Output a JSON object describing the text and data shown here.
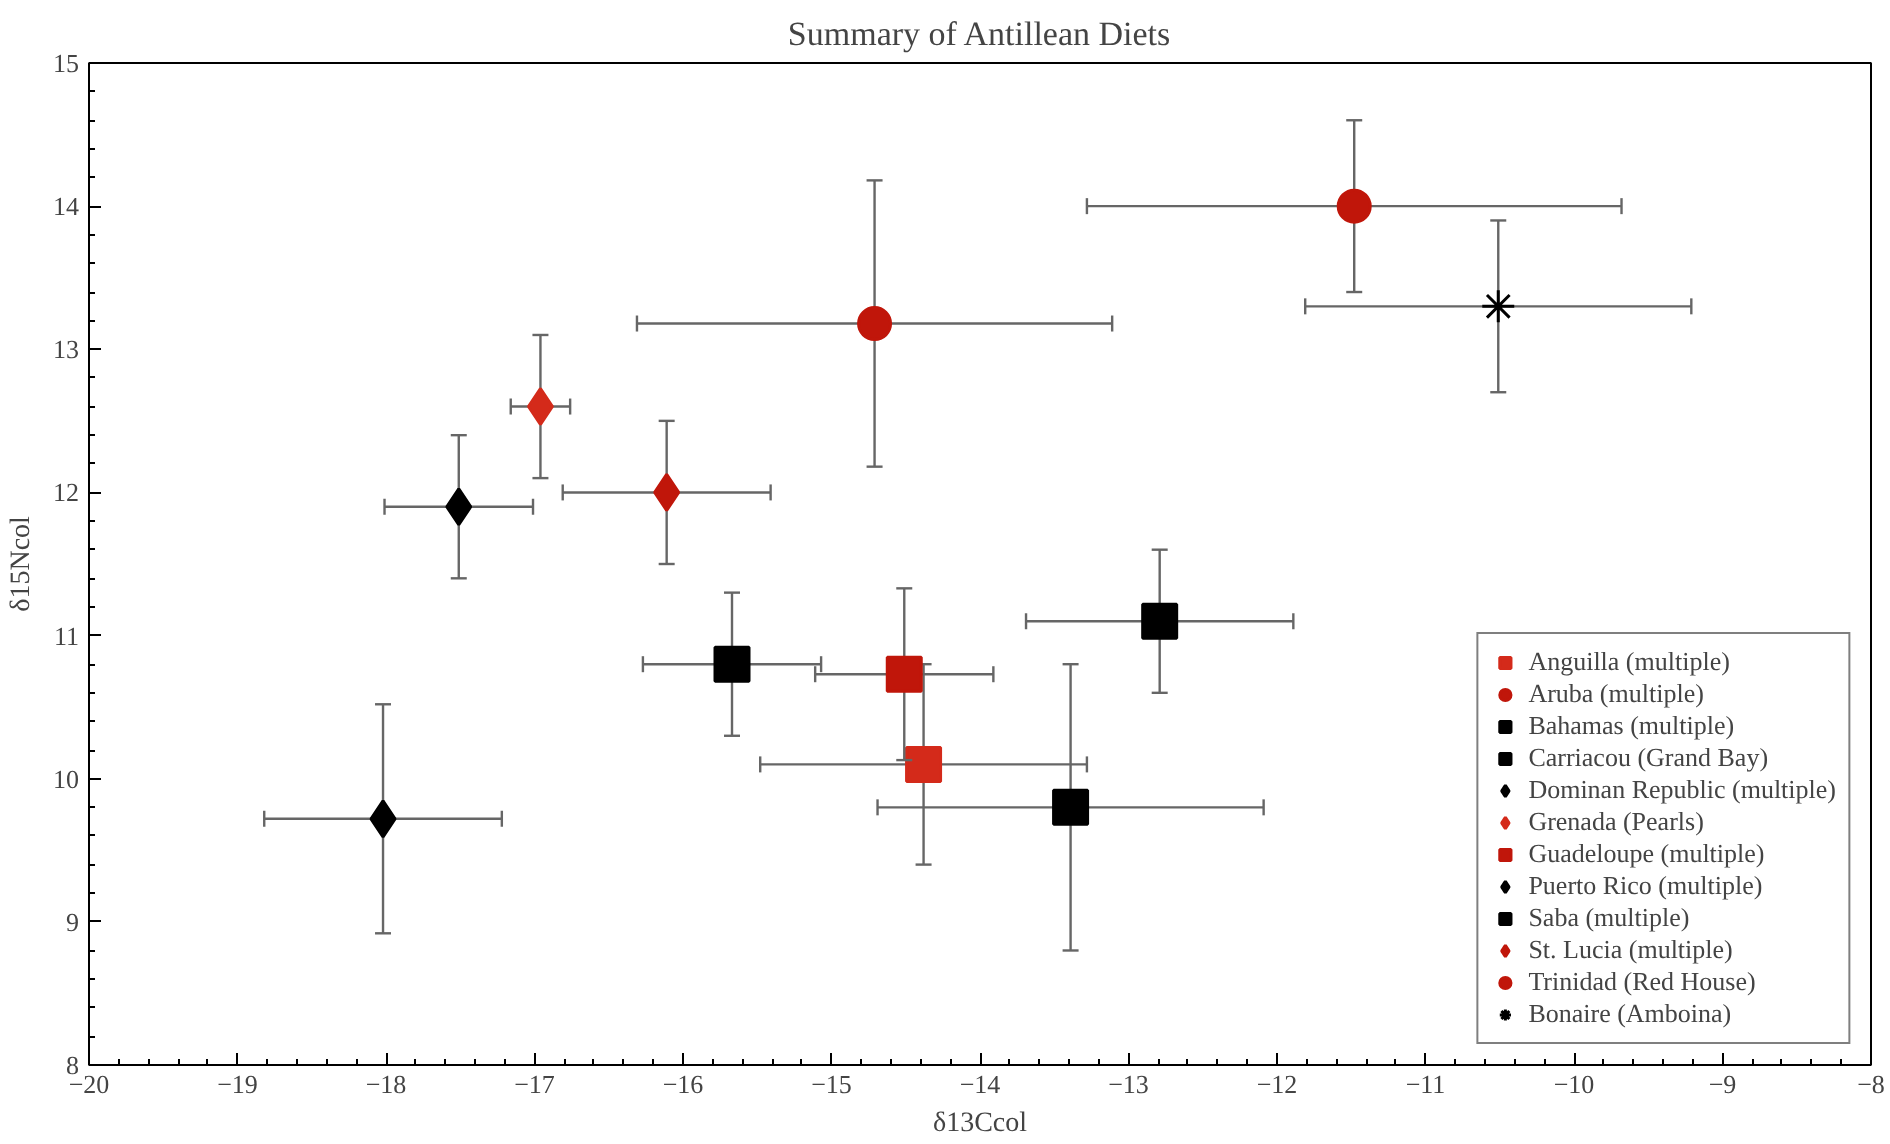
{
  "chart_data": {
    "type": "scatter",
    "title": "Summary of Antillean Diets",
    "xlabel": "δ13Ccol",
    "ylabel": "δ15Ncol",
    "xlim": [
      -20,
      -8
    ],
    "xticks": [
      -20,
      -19,
      -18,
      -17,
      -16,
      -15,
      -14,
      -13,
      -12,
      -11,
      -10,
      -9,
      -8
    ],
    "ylim": [
      8,
      15
    ],
    "yticks": [
      8,
      9,
      10,
      11,
      12,
      13,
      14,
      15
    ],
    "grid": false,
    "legend": "bottom right",
    "series": [
      {
        "name": "Anguilla (multiple)",
        "color": "#d42a1a",
        "marker": "square",
        "x": [
          -14.38
        ],
        "values": [
          10.1
        ],
        "xerrors": [
          1.1
        ],
        "errors": [
          0.7
        ]
      },
      {
        "name": "Aruba (multiple)",
        "color": "#c0160a",
        "marker": "circle",
        "x": [
          -11.48
        ],
        "values": [
          14.0
        ],
        "xerrors": [
          1.8
        ],
        "errors": [
          0.6
        ]
      },
      {
        "name": "Bahamas (multiple)",
        "color": "#000000",
        "marker": "square",
        "x": [
          -15.67
        ],
        "values": [
          10.8
        ],
        "xerrors": [
          0.6
        ],
        "errors": [
          0.5
        ]
      },
      {
        "name": "Carriacou (Grand Bay)",
        "color": "#000000",
        "marker": "square",
        "x": [
          -12.79
        ],
        "values": [
          11.1
        ],
        "xerrors": [
          0.9
        ],
        "errors": [
          0.5
        ]
      },
      {
        "name": "Dominan Republic (multiple)",
        "color": "#000000",
        "marker": "diamond",
        "x": [
          -17.51
        ],
        "values": [
          11.9
        ],
        "xerrors": [
          0.5
        ],
        "errors": [
          0.5
        ]
      },
      {
        "name": "Grenada (Pearls)",
        "color": "#d42a1a",
        "marker": "diamond",
        "x": [
          -16.96
        ],
        "values": [
          12.6
        ],
        "xerrors": [
          0.2
        ],
        "errors": [
          0.5
        ]
      },
      {
        "name": "Guadeloupe (multiple)",
        "color": "#c0160a",
        "marker": "square",
        "x": [
          -14.51
        ],
        "values": [
          10.73
        ],
        "xerrors": [
          0.6
        ],
        "errors": [
          0.6
        ]
      },
      {
        "name": "Puerto Rico (multiple)",
        "color": "#000000",
        "marker": "diamond",
        "x": [
          -18.02
        ],
        "values": [
          9.72
        ],
        "xerrors": [
          0.8
        ],
        "errors": [
          0.8
        ]
      },
      {
        "name": "Saba (multiple)",
        "color": "#000000",
        "marker": "square",
        "x": [
          -13.39
        ],
        "values": [
          9.8
        ],
        "xerrors": [
          1.3
        ],
        "errors": [
          1.0
        ]
      },
      {
        "name": "St. Lucia (multiple)",
        "color": "#c0160a",
        "marker": "diamond",
        "x": [
          -16.11
        ],
        "values": [
          12.0
        ],
        "xerrors": [
          0.7
        ],
        "errors": [
          0.5
        ]
      },
      {
        "name": "Trinidad (Red House)",
        "color": "#c0160a",
        "marker": "circle",
        "x": [
          -14.71
        ],
        "values": [
          13.18
        ],
        "xerrors": [
          1.6
        ],
        "errors": [
          1.0
        ]
      },
      {
        "name": "Bonaire (Amboina)",
        "color": "#000000",
        "marker": "cross",
        "x": [
          -10.51
        ],
        "values": [
          13.3
        ],
        "xerrors": [
          1.3
        ],
        "errors": [
          0.6
        ]
      }
    ]
  }
}
